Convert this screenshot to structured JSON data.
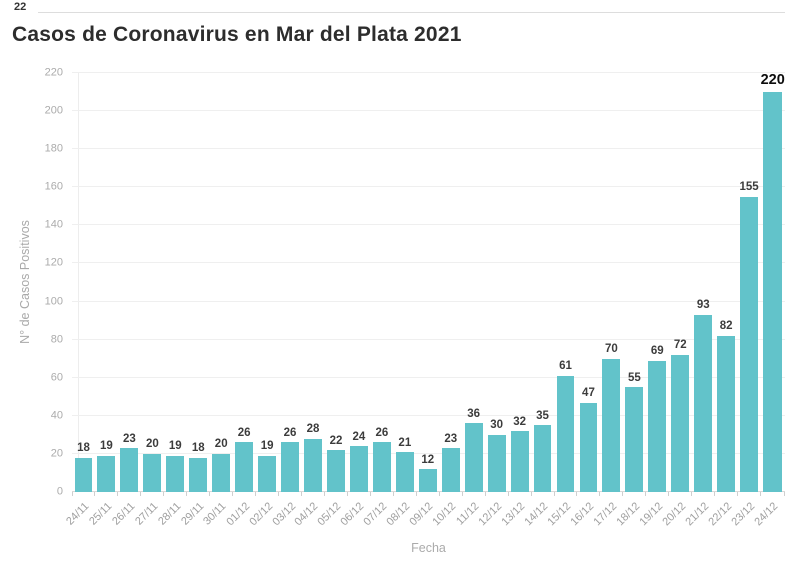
{
  "page": {
    "top_left_number": "22"
  },
  "chart_data": {
    "type": "bar",
    "title": "Casos de Coronavirus en Mar del Plata 2021",
    "xlabel": "Fecha",
    "ylabel": "N° de Casos Positivos",
    "categories": [
      "24/11",
      "25/11",
      "26/11",
      "27/11",
      "28/11",
      "29/11",
      "30/11",
      "01/12",
      "02/12",
      "03/12",
      "04/12",
      "05/12",
      "06/12",
      "07/12",
      "08/12",
      "09/12",
      "10/12",
      "11/12",
      "12/12",
      "13/12",
      "14/12",
      "15/12",
      "16/12",
      "17/12",
      "18/12",
      "19/12",
      "20/12",
      "21/12",
      "22/12",
      "23/12",
      "24/12"
    ],
    "values": [
      18,
      19,
      23,
      20,
      19,
      18,
      20,
      26,
      19,
      26,
      28,
      22,
      24,
      26,
      21,
      12,
      23,
      36,
      30,
      32,
      35,
      61,
      47,
      70,
      55,
      69,
      72,
      93,
      82,
      155,
      220
    ],
    "ylim": [
      0,
      220
    ],
    "y_ticks": [
      0,
      20,
      40,
      60,
      80,
      100,
      120,
      140,
      160,
      180,
      200,
      220
    ],
    "grid": "horizontal",
    "legend": "none",
    "value_labels": "above-bars",
    "highlight_last_value": true,
    "colors": {
      "bar": "#62c3ca",
      "title_text": "#2d2d2d",
      "value_label_text": "#3c3c3c",
      "highlight_label_text": "#0d0d0d",
      "axis_text": "#a9a9a9",
      "gridline": "#efefef",
      "zero_line": "#d8d8d8",
      "top_divider": "#dddddd"
    }
  }
}
